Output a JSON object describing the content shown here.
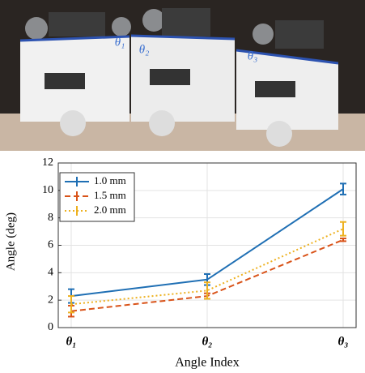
{
  "photo": {
    "labels": [
      "θ₁",
      "θ₂",
      "θ₃"
    ]
  },
  "chart_data": {
    "type": "line",
    "x_label": "Angle Index",
    "y_label": "Angle (deg)",
    "categories": [
      "θ₁",
      "θ₂",
      "θ₃"
    ],
    "series": [
      {
        "name": "1.0 mm",
        "color": "#1f6fb4",
        "dash": "solid",
        "values": [
          2.3,
          3.5,
          10.1
        ],
        "errors": [
          0.5,
          0.4,
          0.4
        ]
      },
      {
        "name": "1.5 mm",
        "color": "#d95319",
        "dash": "dashed",
        "values": [
          1.2,
          2.3,
          6.4
        ],
        "errors": [
          0.4,
          0.2,
          0.1
        ]
      },
      {
        "name": "2.0 mm",
        "color": "#edb120",
        "dash": "dotted",
        "values": [
          1.7,
          2.7,
          7.2
        ],
        "errors": [
          0.6,
          0.6,
          0.5
        ]
      }
    ],
    "ylim": [
      0,
      12
    ],
    "yticks": [
      0,
      2,
      4,
      6,
      8,
      10,
      12
    ],
    "grid": true,
    "legend": "top-left"
  }
}
